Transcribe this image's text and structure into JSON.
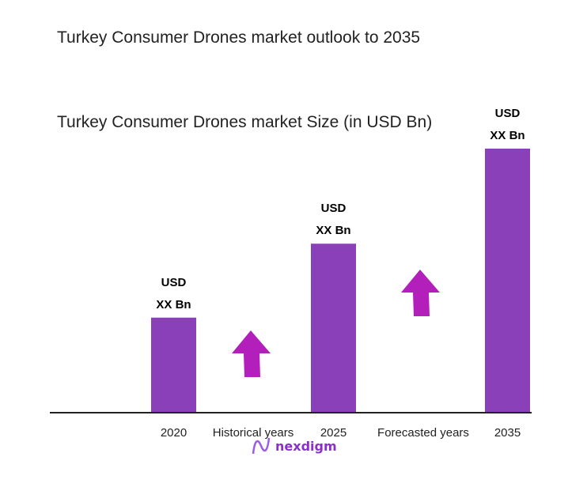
{
  "chart_data": {
    "type": "bar",
    "title": "Turkey Consumer Drones market outlook to 2035",
    "subtitle": "Turkey Consumer Drones market Size (in USD Bn)",
    "categories": [
      "2020",
      "2025",
      "2035"
    ],
    "relative_values": [
      0.36,
      0.64,
      1.0
    ],
    "data_labels": [
      [
        "USD",
        "XX Bn"
      ],
      [
        "USD",
        "XX Bn"
      ],
      [
        "USD",
        "XX Bn"
      ]
    ],
    "period_labels": [
      "Historical years",
      "Forecasted years"
    ],
    "grid": false,
    "colors": {
      "bar": "#8a40b8",
      "arrow": "#b21fba",
      "axis": "#222222"
    }
  },
  "logo": {
    "text": "nexdigm"
  }
}
